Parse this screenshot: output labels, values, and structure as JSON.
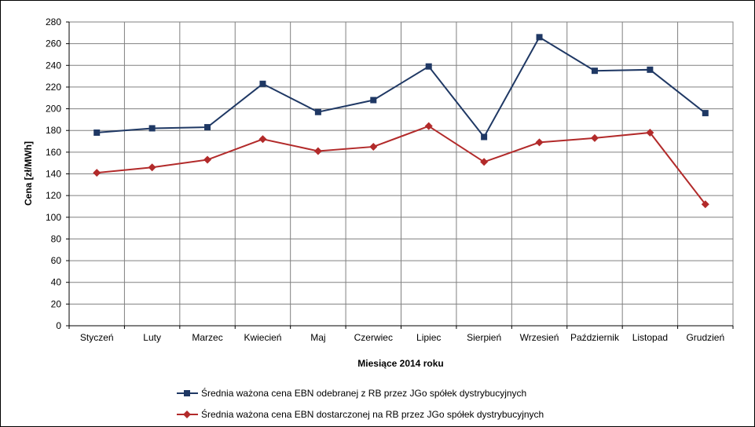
{
  "chart_data": {
    "type": "line",
    "categories": [
      "Styczeń",
      "Luty",
      "Marzec",
      "Kwiecień",
      "Maj",
      "Czerwiec",
      "Lipiec",
      "Sierpień",
      "Wrzesień",
      "Październik",
      "Listopad",
      "Grudzień"
    ],
    "series": [
      {
        "name": "Średnia ważona cena EBN odebranej z RB przez JGo spółek dystrybucyjnych",
        "color": "#1f3864",
        "marker": "square",
        "values": [
          178,
          182,
          183,
          223,
          197,
          208,
          239,
          174,
          266,
          235,
          236,
          196
        ]
      },
      {
        "name": "Średnia ważona cena EBN dostarczonej na RB przez JGo spółek dystrybucyjnych",
        "color": "#b22a2a",
        "marker": "diamond",
        "values": [
          141,
          146,
          153,
          172,
          161,
          165,
          184,
          151,
          169,
          173,
          178,
          112
        ]
      }
    ],
    "xlabel": "Miesiące 2014 roku",
    "ylabel": "Cena  [zł/MWh]",
    "ylim": [
      0,
      280
    ],
    "yticks": [
      0,
      20,
      40,
      60,
      80,
      100,
      120,
      140,
      160,
      180,
      200,
      220,
      240,
      260,
      280
    ],
    "grid": true,
    "legend_position": "bottom"
  }
}
